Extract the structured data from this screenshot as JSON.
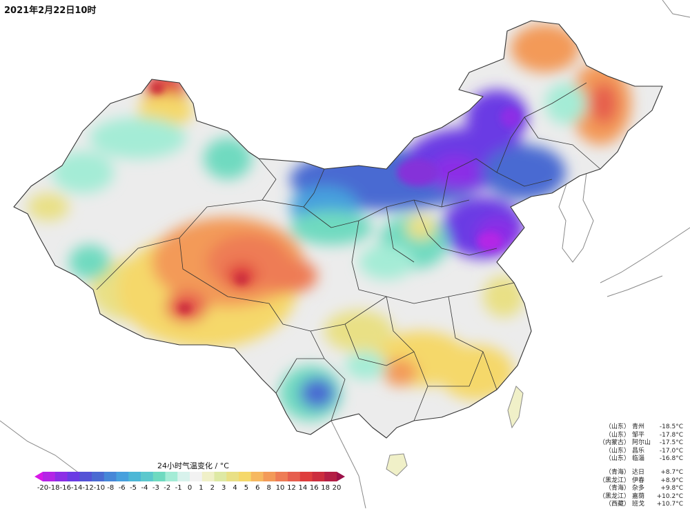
{
  "title": "2021年2月22日10时",
  "legend": {
    "title": "24小时气温变化 / °C",
    "ticks": [
      "-20",
      "-18",
      "-16",
      "-14",
      "-12",
      "-10",
      "-8",
      "-6",
      "-5",
      "-4",
      "-3",
      "-2",
      "-1",
      "0",
      "1",
      "2",
      "3",
      "4",
      "5",
      "6",
      "8",
      "10",
      "12",
      "14",
      "16",
      "18",
      "20"
    ],
    "colors": [
      "#d818e8",
      "#b325e6",
      "#8c2ee6",
      "#6a3be4",
      "#5453d6",
      "#4a6ad2",
      "#4687d8",
      "#47a0dd",
      "#4cb7d6",
      "#5cc8cd",
      "#6fdac0",
      "#a4ecd6",
      "#d8f2ec",
      "#f2f2f2",
      "#f0f0c8",
      "#dee9a4",
      "#e9e085",
      "#f5d86a",
      "#f6b860",
      "#f39a58",
      "#ee7c55",
      "#e65e4e",
      "#de3e3d",
      "#cc2d3e",
      "#b41f45",
      "#9c1148"
    ]
  },
  "stats": {
    "cold": [
      {
        "province": "（山东）",
        "city": "青州",
        "value": "-18.5°C"
      },
      {
        "province": "（山东）",
        "city": "邹平",
        "value": "-17.8°C"
      },
      {
        "province": "（内蒙古）",
        "city": "阿尔山",
        "value": "-17.5°C"
      },
      {
        "province": "（山东）",
        "city": "昌乐",
        "value": "-17.0°C"
      },
      {
        "province": "（山东）",
        "city": "临淄",
        "value": "-16.8°C"
      }
    ],
    "warm": [
      {
        "province": "（青海）",
        "city": "达日",
        "value": "+8.7°C"
      },
      {
        "province": "（黑龙江）",
        "city": "伊春",
        "value": "+8.9°C"
      },
      {
        "province": "（青海）",
        "city": "杂多",
        "value": "+9.8°C"
      },
      {
        "province": "（黑龙江）",
        "city": "嘉荫",
        "value": "+10.2°C"
      },
      {
        "province": "（西藏）",
        "city": "班戈",
        "value": "+10.7°C"
      }
    ]
  },
  "palette": {
    "neutral": "#ececec",
    "cold_deep": "#8533d9",
    "cold_mid": "#4a6ad2",
    "cold_light": "#6fdac0",
    "warm_light": "#e9e085",
    "warm_mid": "#f39a58",
    "warm_deep": "#de3e3d",
    "boundary": "#333333",
    "coast": "#888888"
  }
}
